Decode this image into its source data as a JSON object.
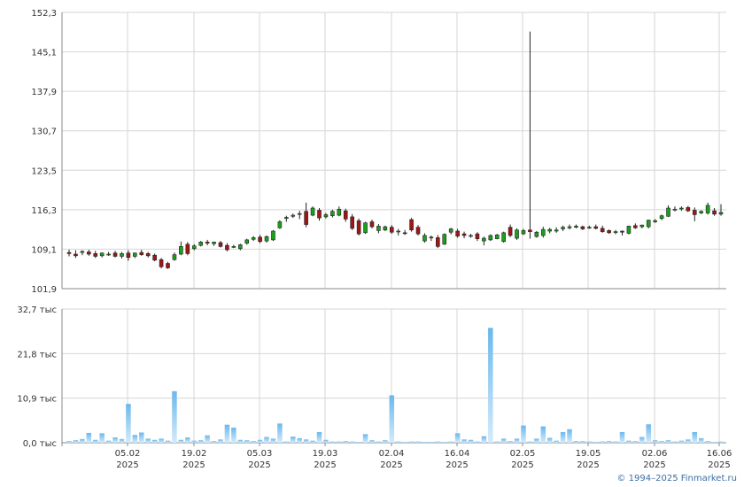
{
  "credit": "© 1994–2025 Finmarket.ru",
  "colors": {
    "up": "#1aa11a",
    "down": "#a01616",
    "volume_top": "#d4ebfb",
    "volume_bottom": "#6ab8ec",
    "grid": "#d6d6d6",
    "axis": "#888888"
  },
  "chart_data": [
    {
      "type": "candlestick",
      "title": "",
      "ylim": [
        101.9,
        152.3
      ],
      "y_ticks": [
        "152,3",
        "145,1",
        "137,9",
        "130,7",
        "123,5",
        "116,3",
        "109,1",
        "101,9"
      ],
      "y_tick_values": [
        152.3,
        145.1,
        137.9,
        130.7,
        123.5,
        116.3,
        109.1,
        101.9
      ],
      "grid": true,
      "ohlc": [
        [
          108.5,
          109.0,
          107.8,
          108.3
        ],
        [
          108.2,
          108.9,
          107.5,
          107.9
        ],
        [
          108.5,
          108.9,
          108.0,
          108.7
        ],
        [
          108.6,
          109.0,
          107.9,
          108.2
        ],
        [
          108.3,
          108.8,
          107.5,
          107.8
        ],
        [
          107.9,
          108.5,
          107.6,
          108.4
        ],
        [
          108.1,
          108.6,
          107.9,
          108.2
        ],
        [
          108.4,
          108.8,
          107.6,
          107.8
        ],
        [
          107.8,
          108.6,
          107.4,
          108.3
        ],
        [
          108.4,
          108.9,
          107.0,
          107.6
        ],
        [
          107.8,
          108.5,
          107.5,
          108.4
        ],
        [
          108.5,
          109.0,
          107.9,
          108.1
        ],
        [
          108.3,
          108.6,
          107.6,
          107.9
        ],
        [
          108.0,
          108.3,
          106.9,
          107.1
        ],
        [
          107.2,
          107.5,
          105.6,
          105.9
        ],
        [
          106.5,
          106.8,
          105.5,
          105.7
        ],
        [
          107.2,
          108.5,
          107.0,
          108.1
        ],
        [
          108.2,
          110.5,
          108.0,
          109.6
        ],
        [
          110.0,
          110.4,
          108.0,
          108.3
        ],
        [
          109.2,
          110.0,
          108.9,
          109.7
        ],
        [
          109.8,
          110.6,
          109.6,
          110.4
        ],
        [
          110.4,
          110.8,
          109.8,
          110.2
        ],
        [
          110.1,
          110.5,
          109.7,
          110.4
        ],
        [
          110.3,
          110.6,
          109.4,
          109.6
        ],
        [
          109.8,
          110.2,
          108.7,
          109.0
        ],
        [
          109.5,
          109.9,
          109.3,
          109.6
        ],
        [
          109.2,
          110.1,
          108.9,
          109.9
        ],
        [
          110.2,
          111.0,
          109.9,
          110.8
        ],
        [
          110.9,
          111.5,
          110.6,
          111.2
        ],
        [
          111.3,
          111.7,
          110.2,
          110.5
        ],
        [
          110.6,
          111.6,
          110.3,
          111.4
        ],
        [
          110.8,
          112.6,
          110.6,
          112.4
        ],
        [
          113.0,
          114.4,
          112.8,
          114.1
        ],
        [
          114.7,
          115.2,
          114.1,
          114.9
        ],
        [
          115.1,
          115.6,
          114.8,
          115.3
        ],
        [
          115.6,
          116.1,
          114.6,
          115.6
        ],
        [
          116.0,
          117.6,
          113.1,
          113.6
        ],
        [
          115.3,
          116.9,
          115.1,
          116.6
        ],
        [
          116.2,
          116.6,
          114.3,
          114.8
        ],
        [
          115.0,
          115.7,
          114.7,
          115.4
        ],
        [
          115.2,
          116.3,
          114.9,
          116.0
        ],
        [
          115.3,
          116.9,
          115.1,
          116.4
        ],
        [
          116.1,
          116.5,
          114.1,
          114.6
        ],
        [
          115.0,
          115.5,
          112.6,
          112.9
        ],
        [
          114.3,
          114.7,
          111.6,
          111.9
        ],
        [
          112.1,
          114.1,
          111.9,
          113.9
        ],
        [
          114.1,
          114.5,
          112.9,
          113.2
        ],
        [
          112.5,
          113.7,
          112.0,
          113.3
        ],
        [
          112.6,
          113.4,
          112.4,
          113.2
        ],
        [
          113.1,
          113.5,
          111.9,
          112.2
        ],
        [
          112.3,
          112.8,
          111.6,
          112.4
        ],
        [
          112.1,
          112.6,
          111.7,
          112.0
        ],
        [
          114.5,
          114.8,
          112.3,
          112.6
        ],
        [
          113.1,
          113.5,
          111.6,
          111.9
        ],
        [
          110.6,
          112.0,
          110.3,
          111.6
        ],
        [
          111.2,
          111.6,
          110.6,
          111.3
        ],
        [
          111.2,
          111.7,
          109.3,
          109.6
        ],
        [
          110.0,
          112.0,
          109.9,
          111.8
        ],
        [
          112.2,
          113.0,
          111.8,
          112.8
        ],
        [
          112.4,
          112.8,
          111.2,
          111.5
        ],
        [
          111.9,
          112.3,
          111.1,
          111.6
        ],
        [
          111.5,
          111.9,
          111.2,
          111.6
        ],
        [
          111.9,
          112.2,
          110.6,
          111.0
        ],
        [
          110.6,
          111.4,
          109.8,
          111.1
        ],
        [
          110.8,
          111.8,
          110.6,
          111.6
        ],
        [
          111.0,
          111.9,
          110.9,
          111.7
        ],
        [
          110.5,
          112.3,
          110.3,
          112.1
        ],
        [
          113.1,
          113.6,
          111.3,
          111.6
        ],
        [
          111.1,
          112.9,
          110.8,
          112.6
        ],
        [
          111.9,
          112.8,
          111.7,
          112.5
        ],
        [
          112.6,
          148.8,
          111.0,
          112.3
        ],
        [
          111.4,
          112.4,
          111.2,
          112.2
        ],
        [
          111.6,
          113.2,
          111.2,
          112.7
        ],
        [
          112.4,
          113.0,
          112.0,
          112.7
        ],
        [
          112.4,
          113.1,
          112.1,
          112.6
        ],
        [
          112.8,
          113.4,
          112.4,
          113.1
        ],
        [
          113.0,
          113.6,
          112.7,
          113.2
        ],
        [
          113.1,
          113.6,
          112.9,
          113.3
        ],
        [
          113.2,
          113.4,
          112.6,
          112.8
        ],
        [
          113.0,
          113.4,
          112.8,
          113.1
        ],
        [
          113.2,
          113.6,
          112.7,
          112.9
        ],
        [
          112.9,
          113.4,
          112.1,
          112.3
        ],
        [
          112.5,
          112.7,
          111.9,
          112.1
        ],
        [
          112.2,
          112.6,
          111.8,
          112.3
        ],
        [
          112.4,
          112.5,
          111.6,
          112.2
        ],
        [
          112.0,
          113.4,
          111.8,
          113.3
        ],
        [
          113.4,
          113.8,
          112.8,
          113.0
        ],
        [
          113.2,
          113.6,
          112.9,
          113.5
        ],
        [
          113.2,
          114.5,
          112.9,
          114.4
        ],
        [
          114.1,
          114.6,
          113.9,
          114.3
        ],
        [
          114.7,
          115.4,
          114.4,
          115.2
        ],
        [
          115.1,
          117.1,
          115.0,
          116.6
        ],
        [
          116.3,
          116.9,
          116.0,
          116.4
        ],
        [
          116.5,
          116.9,
          116.1,
          116.6
        ],
        [
          116.7,
          117.0,
          115.9,
          116.1
        ],
        [
          116.2,
          116.7,
          114.2,
          115.4
        ],
        [
          115.7,
          116.2,
          115.5,
          116.0
        ],
        [
          115.7,
          117.6,
          115.4,
          117.1
        ],
        [
          116.1,
          116.6,
          115.2,
          115.5
        ],
        [
          115.5,
          117.3,
          115.2,
          115.8
        ]
      ],
      "x_ticks": [
        "05.02 2025",
        "19.02 2025",
        "05.03 2025",
        "19.03 2025",
        "02.04 2025",
        "16.04 2025",
        "02.05 2025",
        "19.05 2025",
        "02.06 2025",
        "16.06 2025"
      ]
    },
    {
      "type": "bar",
      "title": "",
      "ylim": [
        0,
        32.7
      ],
      "y_ticks": [
        "32,7 тыс",
        "21,8 тыс",
        "10,9 тыс",
        "0,0 тыс"
      ],
      "y_tick_values": [
        32.7,
        21.8,
        10.9,
        0
      ],
      "unit": "тыс",
      "grid": true,
      "values": [
        0.4,
        0.6,
        0.9,
        2.4,
        0.7,
        2.3,
        0.5,
        1.3,
        0.9,
        9.5,
        1.9,
        2.5,
        1.0,
        0.7,
        1.0,
        0.5,
        12.6,
        0.7,
        1.3,
        0.5,
        0.6,
        1.8,
        0.4,
        0.8,
        4.4,
        3.7,
        0.7,
        0.6,
        0.4,
        0.7,
        1.4,
        1.0,
        4.7,
        0.3,
        1.5,
        1.1,
        0.8,
        0.5,
        2.6,
        0.7,
        0.3,
        0.3,
        0.4,
        0.3,
        0.2,
        2.1,
        0.6,
        0.3,
        0.6,
        11.6,
        0.3,
        0.2,
        0.3,
        0.3,
        0.2,
        0.2,
        0.3,
        0.2,
        0.3,
        2.3,
        0.8,
        0.7,
        0.3,
        1.6,
        28.1,
        0.3,
        1.0,
        0.4,
        1.0,
        4.2,
        0.3,
        1.0,
        4.0,
        1.2,
        0.5,
        2.6,
        3.3,
        0.4,
        0.4,
        0.3,
        0.2,
        0.3,
        0.4,
        0.3,
        2.6,
        0.5,
        0.4,
        1.4,
        4.5,
        0.6,
        0.4,
        0.6,
        0.3,
        0.5,
        0.8,
        2.6,
        1.1,
        0.4,
        0.2,
        0.3
      ]
    }
  ]
}
